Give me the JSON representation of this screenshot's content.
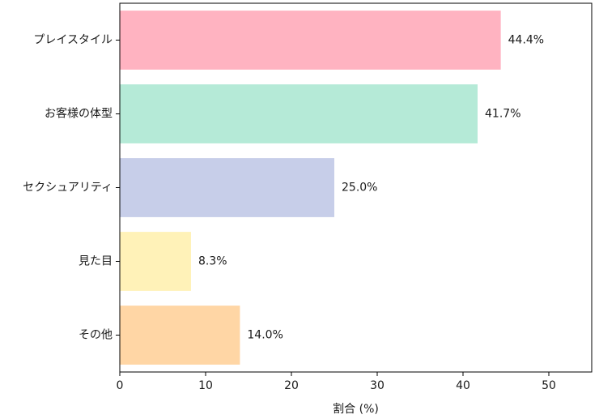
{
  "chart_data": {
    "type": "bar",
    "orientation": "horizontal",
    "categories": [
      "プレイスタイル",
      "お客様の体型",
      "セクシュアリティ",
      "見た目",
      "その他"
    ],
    "values": [
      44.4,
      41.7,
      25.0,
      8.3,
      14.0
    ],
    "value_labels": [
      "44.4%",
      "41.7%",
      "25.0%",
      "8.3%",
      "14.0%"
    ],
    "colors": [
      "#ffb3c1",
      "#b5ead7",
      "#c7cee9",
      "#fff2b8",
      "#ffd6a5"
    ],
    "title": "",
    "xlabel": "割合 (%)",
    "ylabel": "",
    "xlim": [
      0,
      55
    ],
    "xticks": [
      0,
      10,
      20,
      30,
      40,
      50
    ],
    "xtick_labels": [
      "0",
      "10",
      "20",
      "30",
      "40",
      "50"
    ],
    "grid": false,
    "legend": "none"
  }
}
